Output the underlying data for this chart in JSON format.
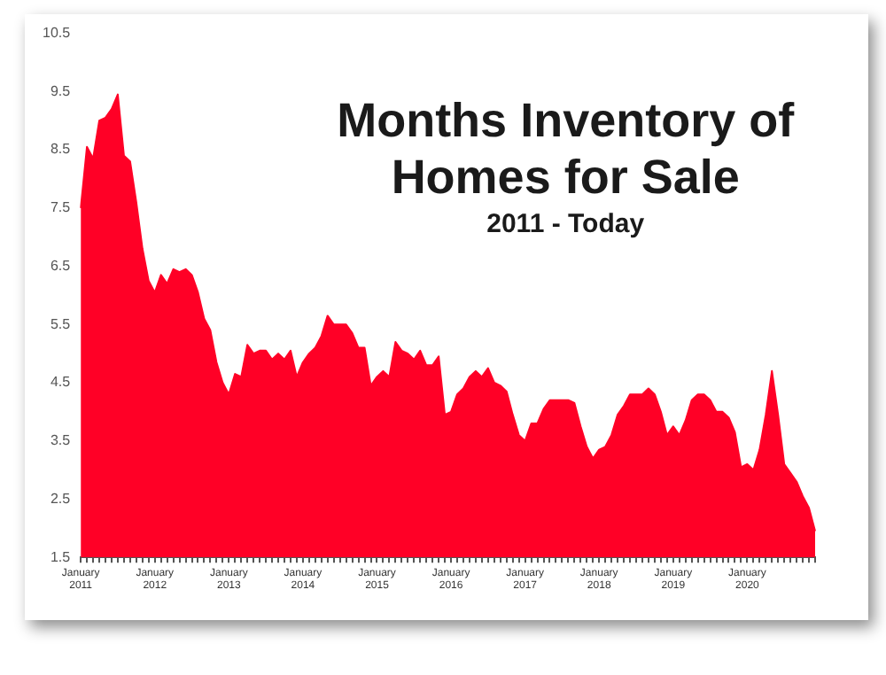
{
  "chart_data": {
    "type": "area",
    "title": "Months Inventory of Homes for Sale",
    "subtitle": "2011 - Today",
    "categories": [
      "January 2011",
      null,
      null,
      null,
      null,
      null,
      null,
      null,
      null,
      null,
      null,
      null,
      "January 2012",
      null,
      null,
      null,
      null,
      null,
      null,
      null,
      null,
      null,
      null,
      null,
      "January 2013",
      null,
      null,
      null,
      null,
      null,
      null,
      null,
      null,
      null,
      null,
      null,
      "January 2014",
      null,
      null,
      null,
      null,
      null,
      null,
      null,
      null,
      null,
      null,
      null,
      "January 2015",
      null,
      null,
      null,
      null,
      null,
      null,
      null,
      null,
      null,
      null,
      null,
      "January 2016",
      null,
      null,
      null,
      null,
      null,
      null,
      null,
      null,
      null,
      null,
      null,
      "January 2017",
      null,
      null,
      null,
      null,
      null,
      null,
      null,
      null,
      null,
      null,
      null,
      "January 2018",
      null,
      null,
      null,
      null,
      null,
      null,
      null,
      null,
      null,
      null,
      null,
      "January 2019",
      null,
      null,
      null,
      null,
      null,
      null,
      null,
      null,
      null,
      null,
      null,
      "January 2020",
      null,
      null,
      null,
      null,
      null,
      null,
      null,
      null,
      null,
      null,
      null
    ],
    "series": [
      {
        "color": "#ff0026",
        "values": [
          7.5,
          8.55,
          8.35,
          9.0,
          9.05,
          9.2,
          9.45,
          8.4,
          8.3,
          7.6,
          6.8,
          6.25,
          6.05,
          6.35,
          6.2,
          6.45,
          6.4,
          6.45,
          6.35,
          6.05,
          5.6,
          5.4,
          4.85,
          4.5,
          4.3,
          4.65,
          4.6,
          5.15,
          5.0,
          5.05,
          5.05,
          4.9,
          5.0,
          4.9,
          5.05,
          4.6,
          4.85,
          5.0,
          5.1,
          5.3,
          5.65,
          5.5,
          5.5,
          5.5,
          5.35,
          5.1,
          5.1,
          4.45,
          4.6,
          4.7,
          4.6,
          5.2,
          5.05,
          5.0,
          4.9,
          5.05,
          4.8,
          4.8,
          4.95,
          3.95,
          4.0,
          4.3,
          4.4,
          4.6,
          4.7,
          4.6,
          4.75,
          4.5,
          4.45,
          4.35,
          3.95,
          3.6,
          3.5,
          3.8,
          3.8,
          4.05,
          4.2,
          4.2,
          4.2,
          4.2,
          4.15,
          3.75,
          3.4,
          3.2,
          3.35,
          3.4,
          3.6,
          3.95,
          4.1,
          4.3,
          4.3,
          4.3,
          4.4,
          4.3,
          4.0,
          3.6,
          3.75,
          3.6,
          3.85,
          4.2,
          4.3,
          4.3,
          4.2,
          4.0,
          4.0,
          3.9,
          3.65,
          3.05,
          3.1,
          3.0,
          3.35,
          3.95,
          4.7,
          3.95,
          3.1,
          2.95,
          2.8,
          2.55,
          2.35,
          1.95
        ]
      }
    ],
    "ylim": [
      1.5,
      10.5
    ],
    "yticks": [
      1.5,
      2.5,
      3.5,
      4.5,
      5.5,
      6.5,
      7.5,
      8.5,
      9.5,
      10.5
    ],
    "grid": false,
    "legend": false
  }
}
